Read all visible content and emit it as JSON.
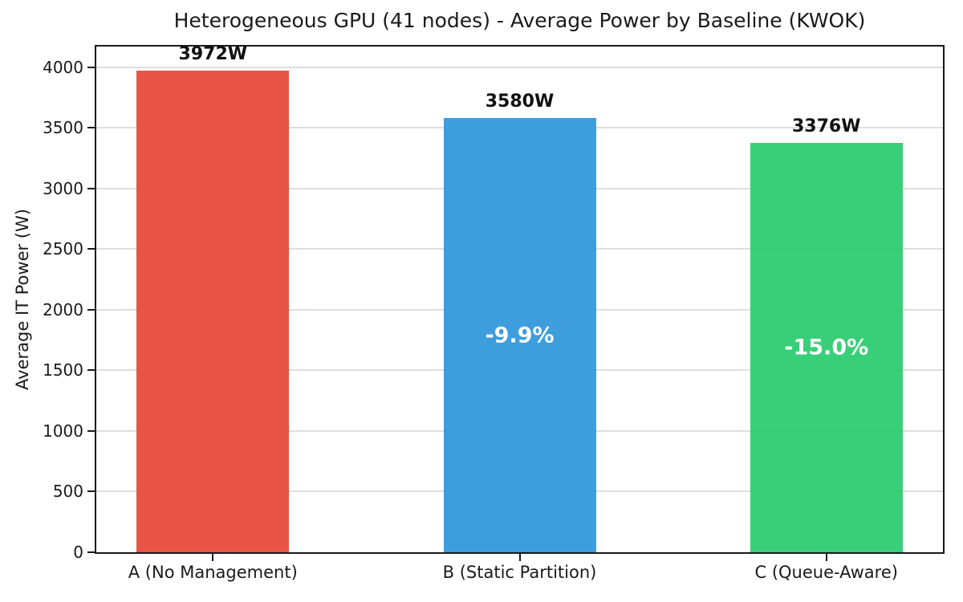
{
  "chart_data": {
    "type": "bar",
    "title": "Heterogeneous GPU (41 nodes) - Average Power by Baseline (KWOK)",
    "xlabel": "",
    "ylabel": "Average IT Power (W)",
    "categories": [
      "A (No Management)",
      "B (Static Partition)",
      "C (Queue-Aware)"
    ],
    "values": [
      3972,
      3580,
      3376
    ],
    "value_labels": [
      "3972W",
      "3580W",
      "3376W"
    ],
    "inner_labels": [
      "",
      "-9.9%",
      "-15.0%"
    ],
    "bar_colors": [
      "#e74c3c",
      "#3498db",
      "#2ecc71"
    ],
    "yticks": [
      0,
      500,
      1000,
      1500,
      2000,
      2500,
      3000,
      3500,
      4000
    ],
    "ylim": [
      0,
      4170
    ],
    "grid": true,
    "legend_position": "none",
    "spine_color": "#1a1a1a",
    "grid_color": "#dedede"
  }
}
